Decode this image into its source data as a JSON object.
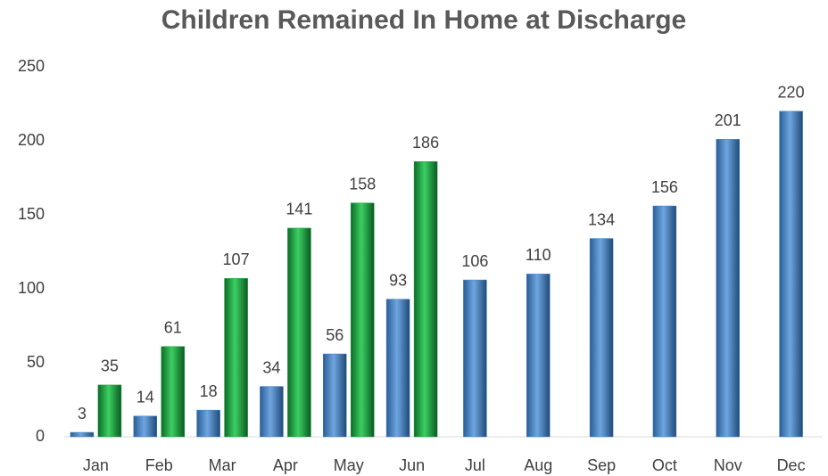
{
  "chart_data": {
    "type": "bar",
    "title": "Children Remained In Home at Discharge",
    "categories": [
      "Jan",
      "Feb",
      "Mar",
      "Apr",
      "May",
      "Jun",
      "Jul",
      "Aug",
      "Sep",
      "Oct",
      "Nov",
      "Dec"
    ],
    "series": [
      {
        "color": "#3f7fc4",
        "values": [
          3,
          14,
          18,
          34,
          56,
          93,
          106,
          110,
          134,
          156,
          201,
          220
        ]
      },
      {
        "color": "#1a9a3c",
        "values": [
          35,
          61,
          107,
          141,
          158,
          186,
          null,
          null,
          null,
          null,
          null,
          null
        ]
      }
    ],
    "ylim": [
      0,
      250
    ],
    "yticks": [
      0,
      50,
      100,
      150,
      200,
      250
    ],
    "grid": false
  }
}
